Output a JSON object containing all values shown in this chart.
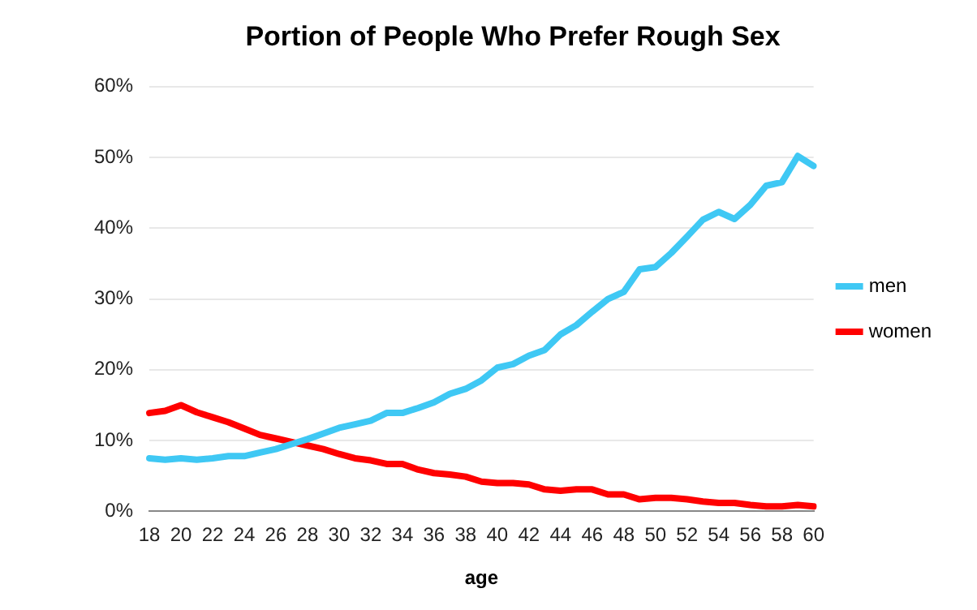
{
  "chart_data": {
    "type": "line",
    "title": "Portion of People Who Prefer Rough Sex",
    "xlabel": "age",
    "categories": [
      "18",
      null,
      "20",
      null,
      "22",
      null,
      "24",
      null,
      "26",
      null,
      "28",
      null,
      "30",
      null,
      "32",
      null,
      "34",
      null,
      "36",
      null,
      "38",
      null,
      "40",
      null,
      "42",
      null,
      "44",
      null,
      "46",
      null,
      "48",
      null,
      "50",
      null,
      "52",
      null,
      "54",
      null,
      "56",
      null,
      "58",
      null,
      "60"
    ],
    "series": [
      {
        "name": "men",
        "color": "#3fc8f4",
        "values": [
          7.5,
          7.3,
          7.5,
          7.3,
          7.5,
          7.8,
          7.8,
          8.3,
          8.8,
          9.5,
          10.2,
          11,
          11.8,
          12.3,
          12.8,
          13.9,
          13.9,
          14.6,
          15.4,
          16.6,
          17.3,
          18.5,
          20.3,
          20.8,
          22,
          22.8,
          25,
          26.3,
          28.2,
          30,
          31,
          34.2,
          34.5,
          36.5,
          38.8,
          41.2,
          42.3,
          41.3,
          43.3,
          46,
          46.5,
          50.2,
          48.8
        ]
      },
      {
        "name": "women",
        "color": "#ff0000",
        "values": [
          13.9,
          14.2,
          15,
          14,
          13.3,
          12.6,
          11.7,
          10.8,
          10.3,
          9.8,
          9.3,
          8.8,
          8.1,
          7.5,
          7.2,
          6.7,
          6.7,
          5.9,
          5.4,
          5.2,
          4.9,
          4.2,
          4,
          4,
          3.8,
          3.1,
          2.9,
          3.1,
          3.1,
          2.4,
          2.4,
          1.7,
          1.9,
          1.9,
          1.7,
          1.4,
          1.2,
          1.2,
          0.9,
          0.7,
          0.7,
          0.9,
          0.7
        ]
      }
    ],
    "ylim": [
      0,
      60
    ],
    "yticks": [
      {
        "value": 0,
        "label": "0%"
      },
      {
        "value": 10,
        "label": "10%"
      },
      {
        "value": 20,
        "label": "20%"
      },
      {
        "value": 30,
        "label": "30%"
      },
      {
        "value": 40,
        "label": "40%"
      },
      {
        "value": 50,
        "label": "50%"
      },
      {
        "value": 60,
        "label": "60%"
      }
    ],
    "grid": "y",
    "legend": "right",
    "marker": "none",
    "line_style": "solid"
  }
}
